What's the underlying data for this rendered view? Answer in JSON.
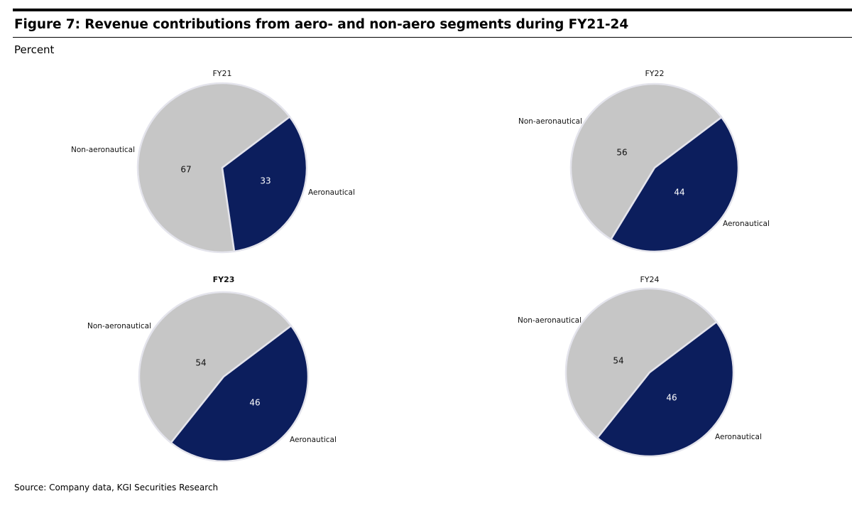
{
  "figure": {
    "title": "Figure 7: Revenue contributions from aero- and non-aero segments during FY21-24",
    "subtitle": "Percent",
    "source": "Source: Company data, KGI Securities Research"
  },
  "colors": {
    "aeronautical": "#0c1e5d",
    "non_aeronautical": "#c6c6c6",
    "slice_border": "#e4e4ec",
    "value_on_dark": "#ffffff",
    "value_on_light": "#111111"
  },
  "chart_data": [
    {
      "type": "pie",
      "title": "FY21",
      "slices": [
        {
          "label": "Aeronautical",
          "value": 33
        },
        {
          "label": "Non-aeronautical",
          "value": 67
        }
      ]
    },
    {
      "type": "pie",
      "title": "FY22",
      "slices": [
        {
          "label": "Aeronautical",
          "value": 44
        },
        {
          "label": "Non-aeronautical",
          "value": 56
        }
      ]
    },
    {
      "type": "pie",
      "title": "FY23",
      "slices": [
        {
          "label": "Aeronautical",
          "value": 46
        },
        {
          "label": "Non-aeronautical",
          "value": 54
        }
      ]
    },
    {
      "type": "pie",
      "title": "FY24",
      "slices": [
        {
          "label": "Aeronautical",
          "value": 46
        },
        {
          "label": "Non-aeronautical",
          "value": 54
        }
      ]
    }
  ]
}
